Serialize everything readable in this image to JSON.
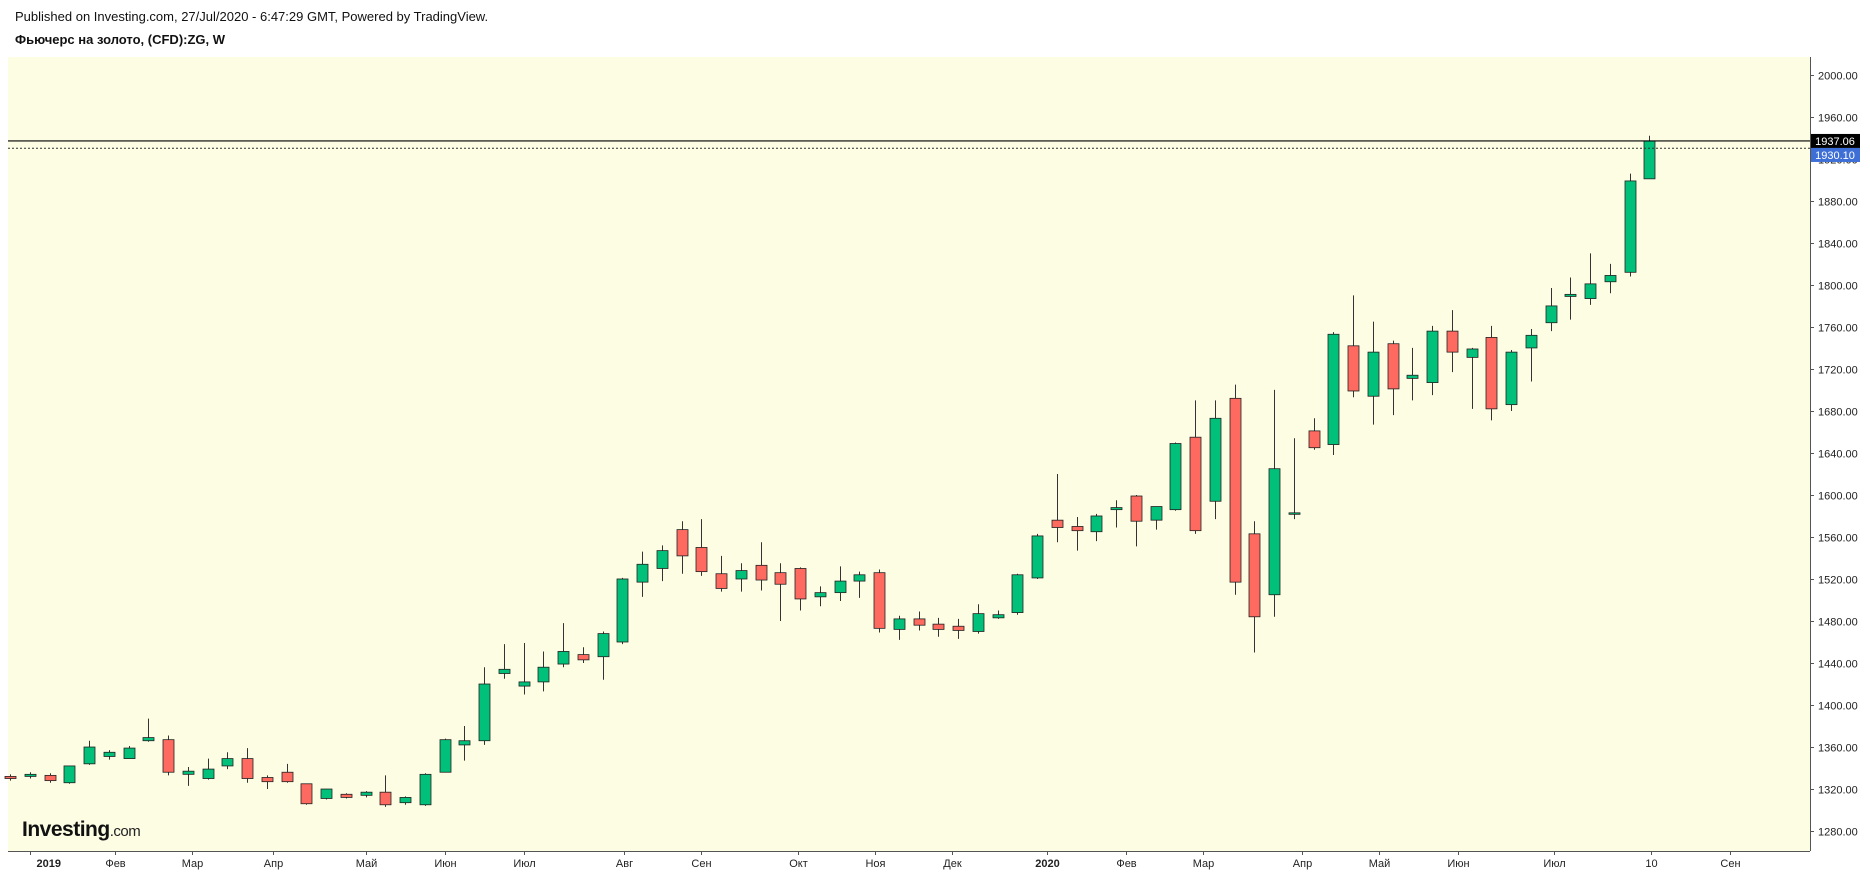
{
  "header": {
    "published": "Published on Investing.com, 27/Jul/2020 - 6:47:29 GMT, Powered by TradingView.",
    "title": "Фьючерс на золото, (CFD):ZG, W"
  },
  "logo": {
    "brand": "Investing",
    "suffix": ".com"
  },
  "colors": {
    "background": "#fdfde4",
    "up": "#00c07a",
    "down": "#ff6a60",
    "wick": "#333333",
    "current_label_bg": "#000000",
    "close_label_bg": "#3d6fd6"
  },
  "chart_data": {
    "type": "candlestick",
    "timeframe": "W",
    "y_ticks": [
      "1280.00",
      "1320.00",
      "1360.00",
      "1400.00",
      "1440.00",
      "1480.00",
      "1520.00",
      "1560.00",
      "1600.00",
      "1640.00",
      "1680.00",
      "1720.00",
      "1760.00",
      "1800.00",
      "1840.00",
      "1880.00",
      "1920.00",
      "1960.00",
      "2000.00"
    ],
    "ylim": [
      1261,
      2017
    ],
    "x_ticks": [
      {
        "label": "2019",
        "bold": true,
        "index": 1
      },
      {
        "label": "Фев",
        "bold": false,
        "index": 5.3
      },
      {
        "label": "Мар",
        "bold": false,
        "index": 9.2
      },
      {
        "label": "Апр",
        "bold": false,
        "index": 13.3
      },
      {
        "label": "Май",
        "bold": false,
        "index": 18.0
      },
      {
        "label": "Июн",
        "bold": false,
        "index": 22.0
      },
      {
        "label": "Июл",
        "bold": false,
        "index": 26.0
      },
      {
        "label": "Авг",
        "bold": false,
        "index": 31.1
      },
      {
        "label": "Сен",
        "bold": false,
        "index": 35.0
      },
      {
        "label": "Окт",
        "bold": false,
        "index": 39.9
      },
      {
        "label": "Ноя",
        "bold": false,
        "index": 43.8
      },
      {
        "label": "Дек",
        "bold": false,
        "index": 47.7
      },
      {
        "label": "2020",
        "bold": true,
        "index": 52.5
      },
      {
        "label": "Фев",
        "bold": false,
        "index": 56.5
      },
      {
        "label": "Мар",
        "bold": false,
        "index": 60.4
      },
      {
        "label": "Апр",
        "bold": false,
        "index": 65.4
      },
      {
        "label": "Май",
        "bold": false,
        "index": 69.3
      },
      {
        "label": "Июн",
        "bold": false,
        "index": 73.3
      },
      {
        "label": "Июл",
        "bold": false,
        "index": 78.2
      },
      {
        "label": "10",
        "bold": false,
        "index": 83.1
      },
      {
        "label": "Сен",
        "bold": false,
        "index": 87.1
      }
    ],
    "current_price": "1937.06",
    "close_price": "1930.10",
    "current_value": 1937.06,
    "close_value": 1930.1,
    "candles": [
      {
        "o": 1332,
        "h": 1334,
        "l": 1328,
        "c": 1330
      },
      {
        "o": 1332,
        "h": 1336,
        "l": 1330,
        "c": 1334
      },
      {
        "o": 1333,
        "h": 1335,
        "l": 1326,
        "c": 1328
      },
      {
        "o": 1326,
        "h": 1342,
        "l": 1325,
        "c": 1342
      },
      {
        "o": 1344,
        "h": 1366,
        "l": 1343,
        "c": 1360
      },
      {
        "o": 1351,
        "h": 1357,
        "l": 1348,
        "c": 1355
      },
      {
        "o": 1349,
        "h": 1361,
        "l": 1349,
        "c": 1359
      },
      {
        "o": 1366,
        "h": 1387,
        "l": 1365,
        "c": 1369
      },
      {
        "o": 1367,
        "h": 1371,
        "l": 1333,
        "c": 1336
      },
      {
        "o": 1334,
        "h": 1341,
        "l": 1323,
        "c": 1337
      },
      {
        "o": 1330,
        "h": 1349,
        "l": 1329,
        "c": 1339
      },
      {
        "o": 1342,
        "h": 1355,
        "l": 1339,
        "c": 1349
      },
      {
        "o": 1349,
        "h": 1359,
        "l": 1326,
        "c": 1330
      },
      {
        "o": 1331,
        "h": 1333,
        "l": 1320,
        "c": 1327
      },
      {
        "o": 1336,
        "h": 1344,
        "l": 1326,
        "c": 1327
      },
      {
        "o": 1325,
        "h": 1325,
        "l": 1305,
        "c": 1306
      },
      {
        "o": 1311,
        "h": 1320,
        "l": 1310,
        "c": 1320
      },
      {
        "o": 1315,
        "h": 1316,
        "l": 1311,
        "c": 1312
      },
      {
        "o": 1314,
        "h": 1318,
        "l": 1312,
        "c": 1317
      },
      {
        "o": 1317,
        "h": 1333,
        "l": 1303,
        "c": 1305
      },
      {
        "o": 1307,
        "h": 1313,
        "l": 1305,
        "c": 1312
      },
      {
        "o": 1305,
        "h": 1335,
        "l": 1304,
        "c": 1334
      },
      {
        "o": 1336,
        "h": 1368,
        "l": 1336,
        "c": 1367
      },
      {
        "o": 1362,
        "h": 1380,
        "l": 1347,
        "c": 1366
      },
      {
        "o": 1366,
        "h": 1436,
        "l": 1362,
        "c": 1420
      },
      {
        "o": 1430,
        "h": 1458,
        "l": 1425,
        "c": 1434
      },
      {
        "o": 1418,
        "h": 1459,
        "l": 1410,
        "c": 1422
      },
      {
        "o": 1422,
        "h": 1451,
        "l": 1413,
        "c": 1436
      },
      {
        "o": 1439,
        "h": 1478,
        "l": 1436,
        "c": 1451
      },
      {
        "o": 1448,
        "h": 1455,
        "l": 1440,
        "c": 1443
      },
      {
        "o": 1446,
        "h": 1470,
        "l": 1424,
        "c": 1468
      },
      {
        "o": 1460,
        "h": 1521,
        "l": 1458,
        "c": 1520
      },
      {
        "o": 1517,
        "h": 1546,
        "l": 1503,
        "c": 1534
      },
      {
        "o": 1530,
        "h": 1552,
        "l": 1518,
        "c": 1547
      },
      {
        "o": 1567,
        "h": 1575,
        "l": 1525,
        "c": 1542
      },
      {
        "o": 1550,
        "h": 1577,
        "l": 1523,
        "c": 1527
      },
      {
        "o": 1525,
        "h": 1542,
        "l": 1508,
        "c": 1511
      },
      {
        "o": 1520,
        "h": 1535,
        "l": 1508,
        "c": 1528
      },
      {
        "o": 1533,
        "h": 1555,
        "l": 1509,
        "c": 1519
      },
      {
        "o": 1526,
        "h": 1535,
        "l": 1480,
        "c": 1515
      },
      {
        "o": 1530,
        "h": 1531,
        "l": 1490,
        "c": 1501
      },
      {
        "o": 1503,
        "h": 1513,
        "l": 1494,
        "c": 1507
      },
      {
        "o": 1507,
        "h": 1532,
        "l": 1499,
        "c": 1518
      },
      {
        "o": 1518,
        "h": 1527,
        "l": 1502,
        "c": 1524
      },
      {
        "o": 1526,
        "h": 1529,
        "l": 1469,
        "c": 1473
      },
      {
        "o": 1472,
        "h": 1485,
        "l": 1462,
        "c": 1482
      },
      {
        "o": 1482,
        "h": 1489,
        "l": 1471,
        "c": 1476
      },
      {
        "o": 1477,
        "h": 1483,
        "l": 1465,
        "c": 1472
      },
      {
        "o": 1475,
        "h": 1482,
        "l": 1463,
        "c": 1471
      },
      {
        "o": 1470,
        "h": 1496,
        "l": 1468,
        "c": 1487
      },
      {
        "o": 1483,
        "h": 1490,
        "l": 1482,
        "c": 1486
      },
      {
        "o": 1488,
        "h": 1525,
        "l": 1486,
        "c": 1524
      },
      {
        "o": 1521,
        "h": 1563,
        "l": 1520,
        "c": 1561
      },
      {
        "o": 1576,
        "h": 1620,
        "l": 1555,
        "c": 1569
      },
      {
        "o": 1570,
        "h": 1579,
        "l": 1547,
        "c": 1566
      },
      {
        "o": 1565,
        "h": 1582,
        "l": 1556,
        "c": 1580
      },
      {
        "o": 1586,
        "h": 1595,
        "l": 1569,
        "c": 1588
      },
      {
        "o": 1599,
        "h": 1600,
        "l": 1551,
        "c": 1575
      },
      {
        "o": 1576,
        "h": 1589,
        "l": 1567,
        "c": 1589
      },
      {
        "o": 1586,
        "h": 1650,
        "l": 1585,
        "c": 1649
      },
      {
        "o": 1655,
        "h": 1690,
        "l": 1563,
        "c": 1566
      },
      {
        "o": 1594,
        "h": 1690,
        "l": 1577,
        "c": 1673
      },
      {
        "o": 1692,
        "h": 1705,
        "l": 1505,
        "c": 1517
      },
      {
        "o": 1563,
        "h": 1575,
        "l": 1450,
        "c": 1484
      },
      {
        "o": 1505,
        "h": 1700,
        "l": 1484,
        "c": 1625
      },
      {
        "o": 1582,
        "h": 1654,
        "l": 1577,
        "c": 1583
      },
      {
        "o": 1661,
        "h": 1673,
        "l": 1643,
        "c": 1645
      },
      {
        "o": 1648,
        "h": 1755,
        "l": 1638,
        "c": 1753
      },
      {
        "o": 1742,
        "h": 1790,
        "l": 1693,
        "c": 1699
      },
      {
        "o": 1694,
        "h": 1765,
        "l": 1667,
        "c": 1736
      },
      {
        "o": 1744,
        "h": 1747,
        "l": 1676,
        "c": 1701
      },
      {
        "o": 1711,
        "h": 1740,
        "l": 1690,
        "c": 1714
      },
      {
        "o": 1707,
        "h": 1761,
        "l": 1695,
        "c": 1756
      },
      {
        "o": 1756,
        "h": 1776,
        "l": 1717,
        "c": 1736
      },
      {
        "o": 1731,
        "h": 1740,
        "l": 1682,
        "c": 1739
      },
      {
        "o": 1750,
        "h": 1761,
        "l": 1671,
        "c": 1682
      },
      {
        "o": 1686,
        "h": 1738,
        "l": 1680,
        "c": 1736
      },
      {
        "o": 1740,
        "h": 1758,
        "l": 1708,
        "c": 1752
      },
      {
        "o": 1764,
        "h": 1797,
        "l": 1756,
        "c": 1780
      },
      {
        "o": 1789,
        "h": 1807,
        "l": 1767,
        "c": 1791
      },
      {
        "o": 1787,
        "h": 1830,
        "l": 1781,
        "c": 1801
      },
      {
        "o": 1803,
        "h": 1820,
        "l": 1792,
        "c": 1809
      },
      {
        "o": 1812,
        "h": 1906,
        "l": 1808,
        "c": 1899
      },
      {
        "o": 1901,
        "h": 1942,
        "l": 1901,
        "c": 1937
      }
    ]
  }
}
